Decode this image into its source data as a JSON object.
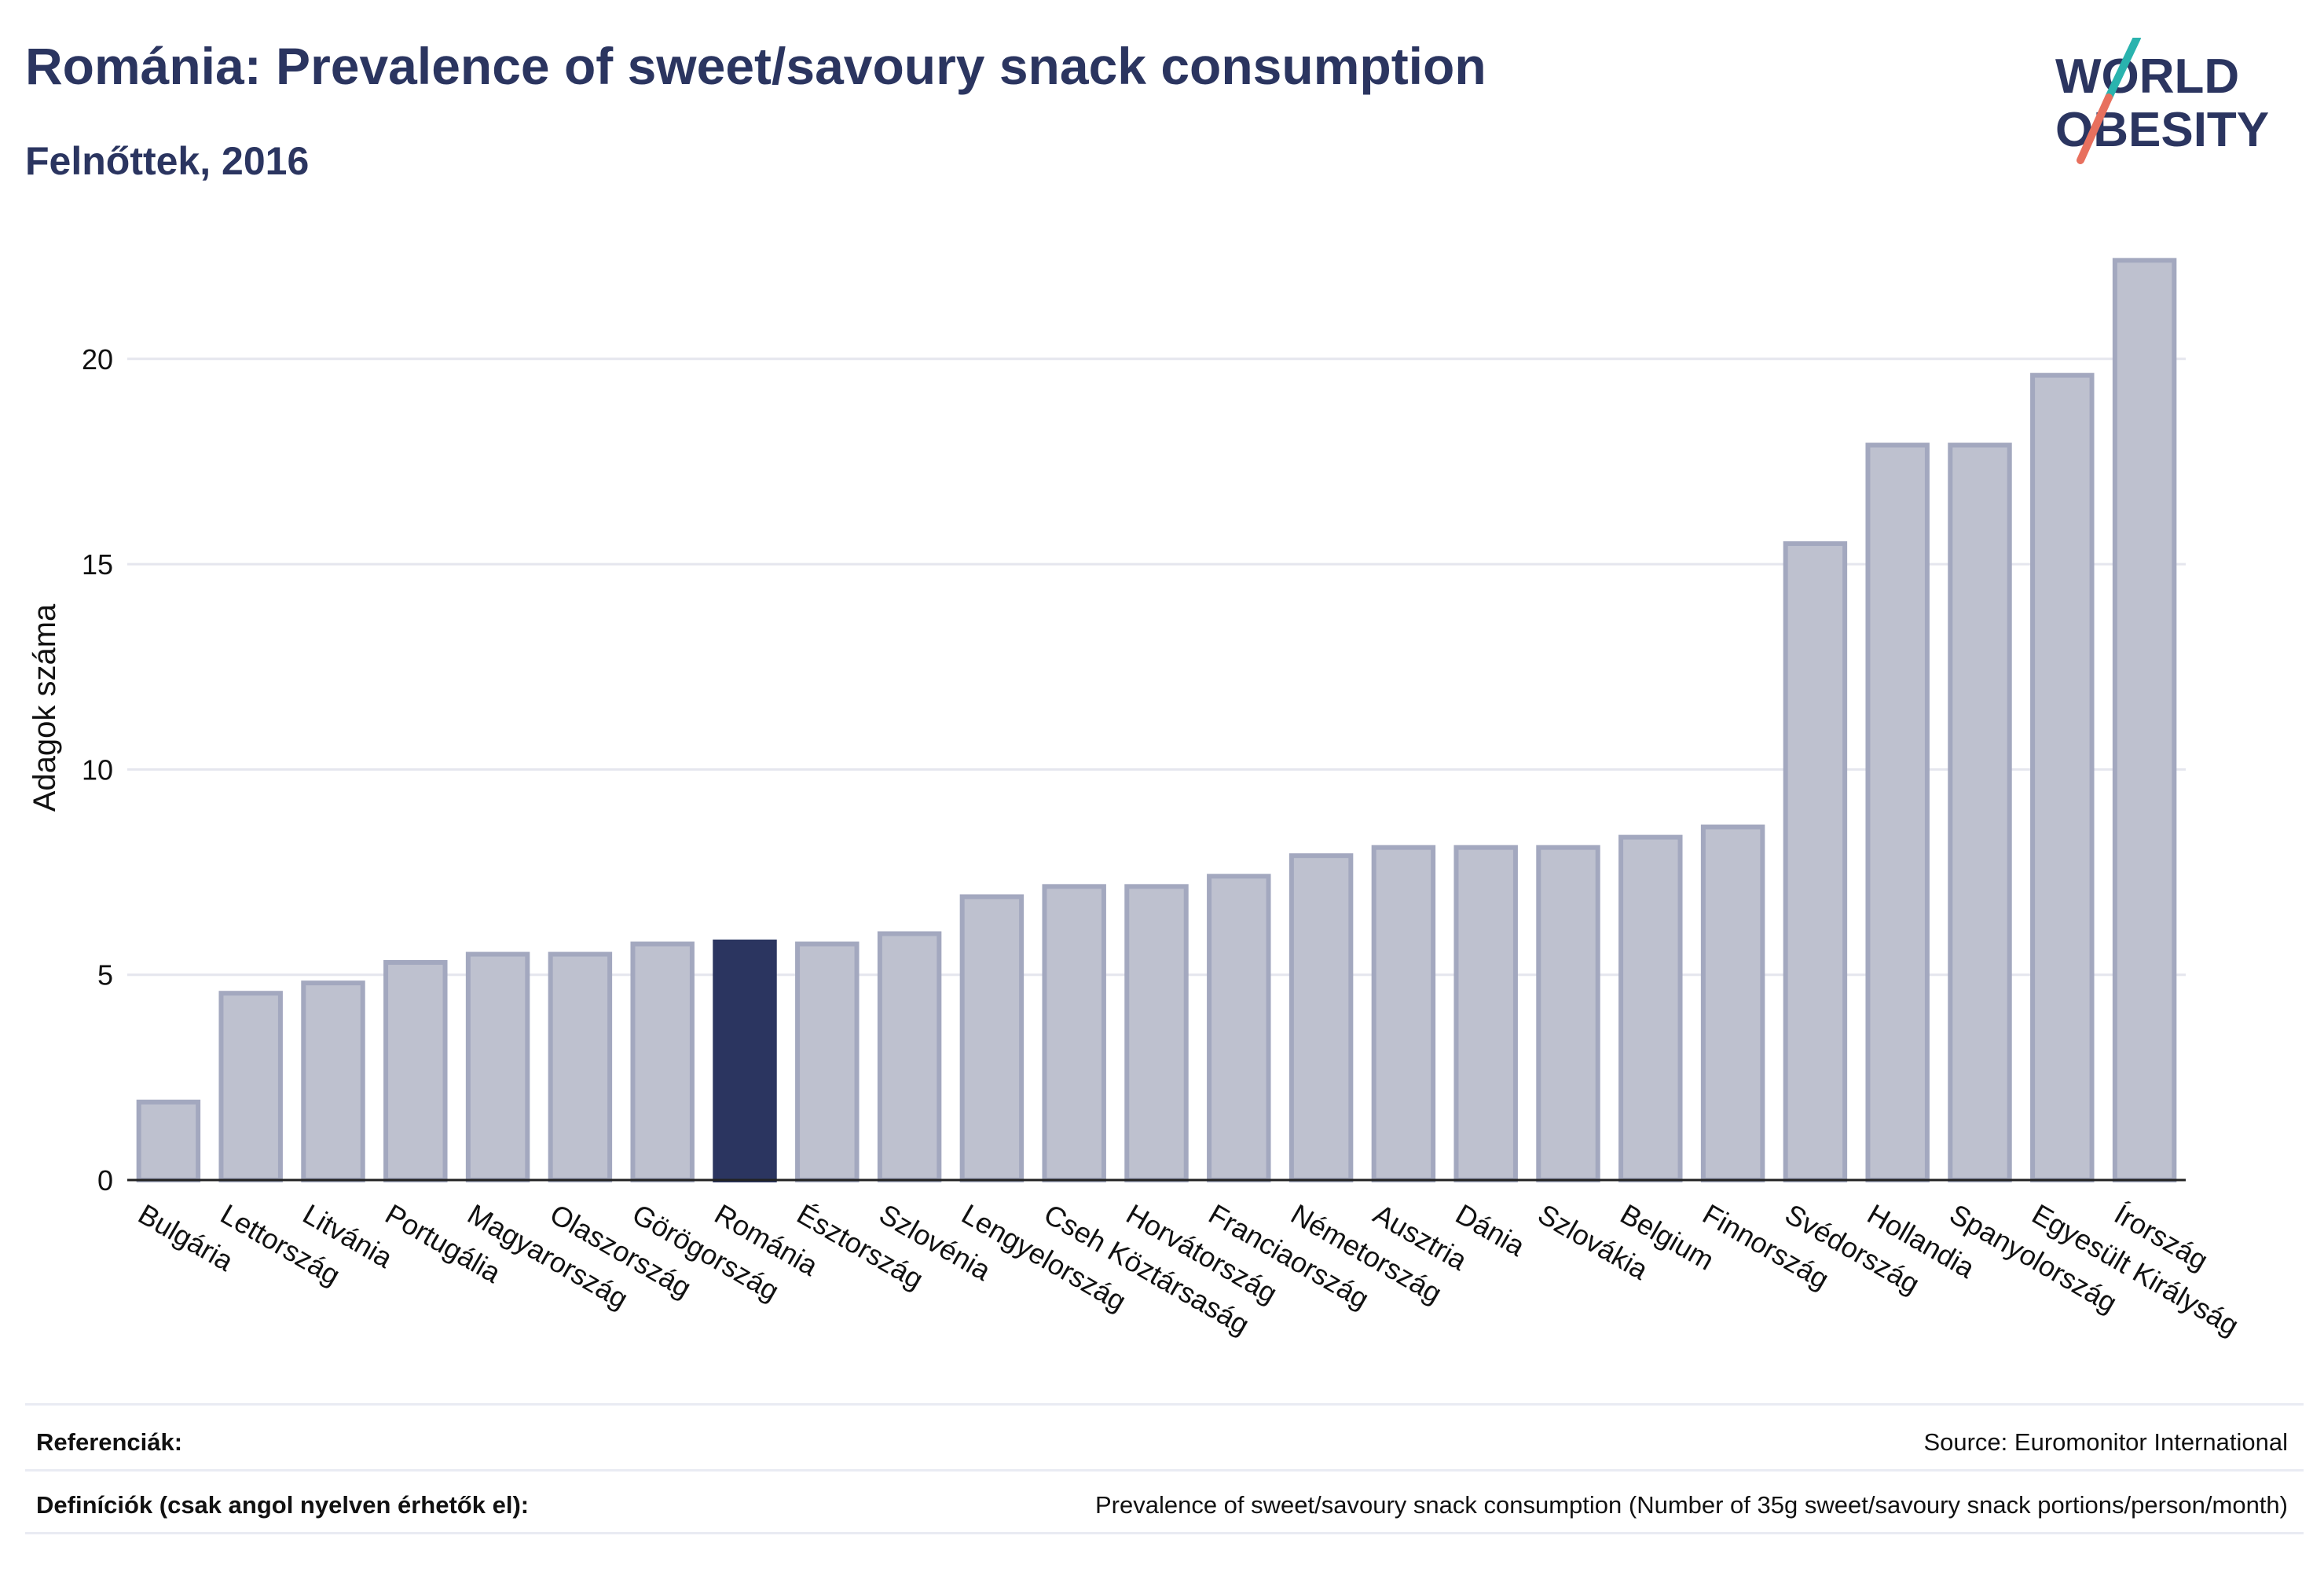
{
  "header": {
    "title": "Románia: Prevalence of sweet/savoury snack consumption",
    "subtitle": "Felnőttek, 2016",
    "logo_text_line1": "WORLD",
    "logo_text_line2": "OBESITY"
  },
  "colors": {
    "title": "#2b3560",
    "bar": "#bec1cf",
    "bar_stroke": "#a3a8bf",
    "highlight": "#2b3560",
    "grid": "#e5e6ee",
    "logo_teal": "#2ab3ae",
    "logo_coral": "#e8705e"
  },
  "chart_data": {
    "type": "bar",
    "ylabel": "Adagok száma",
    "xlabel": "",
    "ylim": [
      0,
      23
    ],
    "yticks": [
      0,
      5,
      10,
      15,
      20
    ],
    "grid": true,
    "highlight_category": "Románia",
    "categories": [
      "Bulgária",
      "Lettország",
      "Litvánia",
      "Portugália",
      "Magyarország",
      "Olaszország",
      "Görögország",
      "Románia",
      "Észtország",
      "Szlovénia",
      "Lengyelország",
      "Cseh Köztársaság",
      "Horvátország",
      "Franciaország",
      "Németország",
      "Ausztria",
      "Dánia",
      "Szlovákia",
      "Belgium",
      "Finnország",
      "Svédország",
      "Hollandia",
      "Spanyolország",
      "Egyesült Királyság",
      "Írország"
    ],
    "values": [
      1.9,
      4.55,
      4.8,
      5.3,
      5.5,
      5.5,
      5.75,
      5.8,
      5.75,
      6.0,
      6.9,
      7.15,
      7.15,
      7.4,
      7.9,
      8.1,
      8.1,
      8.1,
      8.35,
      8.6,
      15.5,
      17.9,
      17.9,
      19.6,
      22.4
    ]
  },
  "footer": {
    "references_label": "Referenciák:",
    "references_value": "Source: Euromonitor International",
    "definitions_label": "Definíciók (csak angol nyelven érhetők el):",
    "definitions_value": "Prevalence of sweet/savoury snack consumption (Number of 35g sweet/savoury snack portions/person/month)"
  }
}
